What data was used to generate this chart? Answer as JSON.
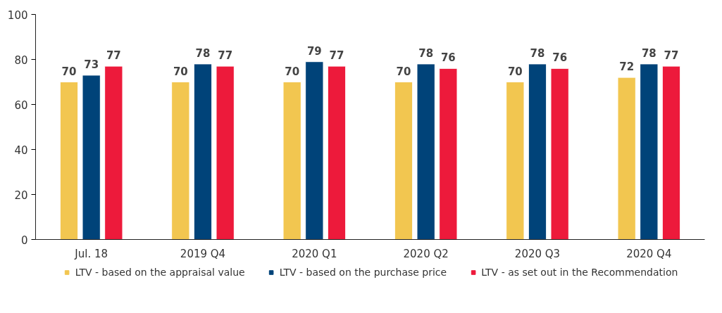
{
  "chart_data": {
    "type": "bar",
    "categories": [
      "Jul. 18",
      "2019 Q4",
      "2020 Q1",
      "2020 Q2",
      "2020 Q3",
      "2020 Q4"
    ],
    "series": [
      {
        "name": "LTV - based on the appraisal value",
        "color": "#f2c650",
        "values": [
          70,
          70,
          70,
          70,
          70,
          72
        ]
      },
      {
        "name": "LTV - based on the purchase price",
        "color": "#004379",
        "values": [
          73,
          78,
          79,
          78,
          78,
          78
        ]
      },
      {
        "name": "LTV - as set out in the Recommendation",
        "color": "#ed1a3b",
        "values": [
          77,
          77,
          77,
          76,
          76,
          77
        ]
      }
    ],
    "ylim": [
      0,
      100
    ],
    "yticks": [
      0,
      20,
      40,
      60,
      80,
      100
    ],
    "grid": false,
    "legend": "bottom",
    "data_labels": true
  }
}
